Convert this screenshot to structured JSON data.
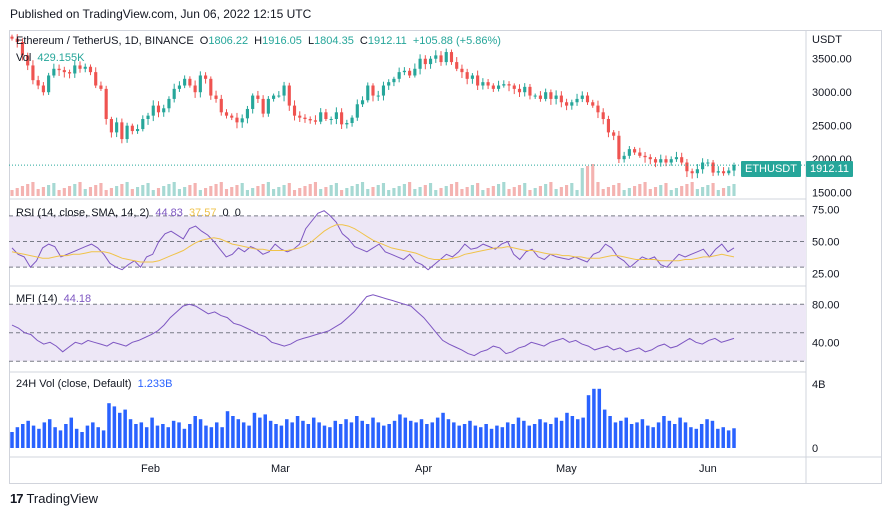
{
  "header": {
    "published": "Published on TradingView.com, Jun 06, 2022 12:15 UTC"
  },
  "main_legend": {
    "symbol": "Ethereum / TetherUS, 1D, BINANCE",
    "o_label": "O",
    "o": "1806.22",
    "h_label": "H",
    "h": "1916.05",
    "l_label": "L",
    "l": "1804.35",
    "c_label": "C",
    "c": "1912.11",
    "change": "+105.88 (+5.86%)",
    "vol_label": "Vol",
    "vol": "429.155K"
  },
  "rsi_legend": {
    "title": "RSI (14, close, SMA, 14, 2)",
    "rsi": "44.83",
    "sma": "37.57",
    "extra1": "0",
    "extra2": "0"
  },
  "mfi_legend": {
    "title": "MFI (14)",
    "value": "44.18"
  },
  "vol_legend": {
    "title": "24H Vol (close, Default)",
    "value": "1.233B"
  },
  "axis": {
    "currency": "USDT",
    "price_ticks": [
      "3500.00",
      "3000.00",
      "2500.00",
      "2000.00",
      "1500.00"
    ],
    "rsi_ticks": [
      "75.00",
      "50.00",
      "25.00"
    ],
    "mfi_ticks": [
      "80.00",
      "40.00"
    ],
    "vol_ticks": [
      "4B",
      "0"
    ],
    "months": [
      "Feb",
      "Mar",
      "Apr",
      "May",
      "Jun"
    ]
  },
  "tags": {
    "symbol_tag": "ETHUSDT",
    "price_tag": "1912.11"
  },
  "footer": {
    "brand": "TradingView",
    "logo": "17"
  },
  "colors": {
    "up": "#26a69a",
    "down": "#ef5350",
    "rsi": "#7e57c2",
    "sma": "#f0c34a",
    "vol24": "#2962ff",
    "band": "#ede7f6"
  },
  "chart_data": [
    {
      "type": "candlestick",
      "title": "Ethereum / TetherUS, 1D, BINANCE",
      "ylim": [
        1450,
        3750
      ],
      "x_range": [
        "Jan 04",
        "Jun 06"
      ],
      "closes": [
        3800,
        3750,
        3550,
        3400,
        3180,
        3100,
        3000,
        3250,
        3350,
        3330,
        3300,
        3280,
        3400,
        3350,
        3380,
        3300,
        3100,
        3050,
        2600,
        2400,
        2550,
        2300,
        2500,
        2420,
        2450,
        2600,
        2650,
        2800,
        2700,
        2760,
        2900,
        3050,
        3100,
        3200,
        3100,
        3000,
        3250,
        3200,
        2950,
        2900,
        2700,
        2650,
        2620,
        2550,
        2610,
        2750,
        2950,
        2900,
        2680,
        2900,
        2950,
        2950,
        3100,
        2800,
        2650,
        2620,
        2600,
        2580,
        2560,
        2700,
        2600,
        2600,
        2700,
        2520,
        2540,
        2620,
        2820,
        2880,
        3100,
        2950,
        2950,
        3100,
        3150,
        3200,
        3300,
        3320,
        3250,
        3350,
        3500,
        3420,
        3500,
        3550,
        3450,
        3600,
        3450,
        3350,
        3300,
        3200,
        3250,
        3100,
        3150,
        3100,
        3050,
        3100,
        3120,
        3100,
        3050,
        3000,
        3080,
        2950,
        2950,
        2900,
        3000,
        2900,
        2950,
        2850,
        2800,
        2850,
        2900,
        2950,
        2850,
        2800,
        2700,
        2600,
        2400,
        2350,
        2000,
        2050,
        2150,
        2100,
        2050,
        2030,
        2000,
        1950,
        2000,
        1950,
        2000,
        2030,
        1950,
        1820,
        1790,
        1850,
        1950,
        1950,
        1800,
        1820,
        1790,
        1830,
        1912
      ],
      "volume_label": "Vol 429.155K"
    },
    {
      "type": "line",
      "title": "RSI (14, close, SMA, 14, 2)",
      "ylim": [
        0,
        100
      ],
      "series": [
        {
          "name": "RSI",
          "values": [
            45,
            40,
            38,
            30,
            35,
            45,
            48,
            46,
            38,
            40,
            42,
            44,
            46,
            48,
            45,
            40,
            33,
            30,
            28,
            32,
            35,
            30,
            38,
            40,
            50,
            56,
            58,
            55,
            52,
            60,
            62,
            58,
            55,
            50,
            44,
            38,
            40,
            45,
            42,
            46,
            44,
            40,
            42,
            48,
            44,
            42,
            44,
            48,
            60,
            66,
            72,
            74,
            70,
            65,
            56,
            52,
            46,
            44,
            42,
            45,
            48,
            42,
            40,
            38,
            36,
            40,
            34,
            32,
            28,
            32,
            36,
            40,
            38,
            42,
            48,
            44,
            45,
            48,
            46,
            44,
            48,
            50,
            40,
            36,
            42,
            44,
            38,
            36,
            40,
            38,
            37,
            36,
            38,
            36,
            34,
            40,
            42,
            48,
            45,
            38,
            35,
            30,
            34,
            38,
            36,
            38,
            32,
            30,
            35,
            40,
            38,
            40,
            42,
            44,
            38,
            44,
            48,
            42,
            45
          ]
        },
        {
          "name": "SMA",
          "values": [
            42,
            41,
            40,
            39,
            38,
            37,
            37,
            38,
            39,
            39,
            40,
            40,
            41,
            42,
            42,
            42,
            41,
            39,
            37,
            36,
            35,
            34,
            34,
            34,
            35,
            37,
            39,
            41,
            43,
            46,
            49,
            51,
            52,
            53,
            52,
            50,
            48,
            47,
            46,
            45,
            44,
            44,
            43,
            43,
            43,
            43,
            44,
            45,
            47,
            50,
            54,
            58,
            61,
            63,
            63,
            62,
            60,
            57,
            54,
            51,
            49,
            47,
            45,
            44,
            43,
            42,
            41,
            39,
            37,
            36,
            36,
            36,
            37,
            38,
            40,
            41,
            42,
            43,
            44,
            45,
            45,
            46,
            45,
            44,
            43,
            43,
            42,
            41,
            40,
            40,
            39,
            39,
            38,
            38,
            37,
            37,
            37,
            38,
            39,
            39,
            38,
            37,
            36,
            36,
            36,
            36,
            35,
            35,
            35,
            35,
            36,
            36,
            37,
            38,
            38,
            39,
            40,
            39,
            38
          ]
        }
      ],
      "ylabel": ""
    },
    {
      "type": "line",
      "title": "MFI (14)",
      "ylim": [
        0,
        100
      ],
      "series": [
        {
          "name": "MFI",
          "values": [
            58,
            55,
            50,
            48,
            42,
            38,
            40,
            36,
            30,
            35,
            40,
            38,
            42,
            40,
            38,
            36,
            40,
            38,
            36,
            40,
            42,
            45,
            48,
            52,
            58,
            66,
            72,
            78,
            80,
            78,
            74,
            70,
            72,
            68,
            66,
            60,
            58,
            55,
            52,
            48,
            46,
            40,
            38,
            36,
            38,
            42,
            44,
            46,
            48,
            50,
            52,
            56,
            60,
            66,
            72,
            80,
            88,
            90,
            88,
            86,
            84,
            82,
            80,
            78,
            72,
            66,
            58,
            50,
            42,
            38,
            35,
            32,
            28,
            26,
            30,
            32,
            36,
            34,
            28,
            30,
            34,
            36,
            40,
            38,
            36,
            40,
            42,
            44,
            40,
            42,
            38,
            36,
            32,
            34,
            36,
            32,
            34,
            30,
            32,
            34,
            30,
            32,
            36,
            38,
            34,
            36,
            40,
            44,
            40,
            38,
            42,
            44,
            40,
            42,
            44
          ]
        }
      ]
    },
    {
      "type": "bar",
      "title": "24H Vol (close, Default)",
      "ylim": [
        0,
        4.5
      ],
      "unit": "B",
      "values": [
        1.0,
        1.3,
        1.5,
        1.7,
        1.4,
        1.2,
        1.6,
        1.8,
        1.3,
        1.1,
        1.5,
        1.9,
        1.2,
        1.0,
        1.4,
        1.6,
        1.3,
        1.1,
        2.8,
        2.6,
        2.2,
        2.4,
        1.8,
        1.5,
        1.6,
        1.3,
        1.9,
        1.4,
        1.5,
        1.3,
        1.7,
        1.6,
        1.2,
        1.5,
        2.0,
        1.8,
        1.4,
        1.3,
        1.6,
        1.3,
        2.3,
        2.0,
        1.8,
        1.6,
        1.4,
        2.2,
        1.9,
        2.1,
        1.7,
        1.5,
        1.4,
        1.8,
        1.6,
        2.0,
        1.7,
        1.5,
        1.9,
        1.6,
        1.4,
        1.3,
        1.7,
        1.5,
        1.8,
        1.6,
        2.0,
        1.7,
        1.5,
        1.9,
        1.6,
        1.4,
        1.5,
        1.7,
        2.1,
        1.9,
        1.7,
        1.6,
        1.8,
        1.5,
        1.6,
        1.9,
        2.2,
        1.8,
        1.6,
        1.4,
        1.5,
        1.7,
        1.4,
        1.3,
        1.5,
        1.2,
        1.4,
        1.3,
        1.6,
        1.5,
        1.9,
        1.7,
        1.4,
        1.5,
        1.8,
        1.6,
        1.5,
        1.9,
        1.7,
        2.2,
        2.0,
        1.8,
        1.9,
        3.3,
        3.7,
        3.7,
        2.4,
        2.0,
        1.6,
        1.7,
        1.9,
        1.5,
        1.6,
        1.8,
        1.4,
        1.3,
        1.6,
        2.0,
        1.7,
        1.5,
        1.9,
        1.6,
        1.3,
        1.2,
        1.5,
        1.8,
        1.7,
        1.2,
        1.3,
        1.1,
        1.233
      ]
    }
  ]
}
